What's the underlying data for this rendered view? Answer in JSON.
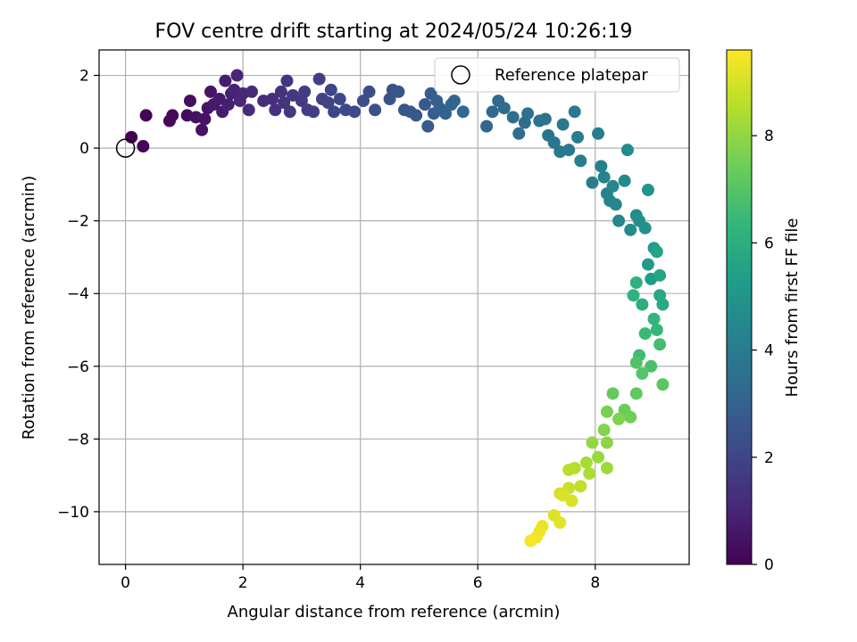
{
  "chart_data": {
    "type": "scatter",
    "title": "FOV centre drift starting at 2024/05/24 10:26:19",
    "xlabel": "Angular distance from reference (arcmin)",
    "ylabel": "Rotation from reference (arcmin)",
    "xlim": [
      -0.45,
      9.6
    ],
    "ylim": [
      -11.45,
      2.7
    ],
    "xticks": [
      0,
      2,
      4,
      6,
      8
    ],
    "yticks": [
      2,
      0,
      -2,
      -4,
      -6,
      -8,
      -10
    ],
    "xtick_labels": [
      "0",
      "2",
      "4",
      "6",
      "8"
    ],
    "ytick_labels": [
      "2",
      "0",
      "−2",
      "−4",
      "−6",
      "−8",
      "−10"
    ],
    "grid": true,
    "legend": {
      "placement": "top-right",
      "entries": [
        "Reference platepar"
      ]
    },
    "reference_point": {
      "x": 0,
      "y": 0,
      "marker": "open-circle"
    },
    "colorbar": {
      "label": "Hours from first FF file",
      "colormap": "viridis",
      "range": [
        0,
        9.6
      ],
      "ticks": [
        0,
        2,
        4,
        6,
        8
      ],
      "tick_labels": [
        "0",
        "2",
        "4",
        "6",
        "8"
      ]
    },
    "colormap_stops": [
      "#440154",
      "#482878",
      "#3e4989",
      "#31688e",
      "#26828e",
      "#1f9e89",
      "#35b779",
      "#6ece58",
      "#b5de2b",
      "#fde725"
    ],
    "points": [
      [
        0.1,
        0.3,
        0.0
      ],
      [
        0.3,
        0.05,
        0.05
      ],
      [
        0.35,
        0.9,
        0.1
      ],
      [
        0.75,
        0.75,
        0.2
      ],
      [
        0.8,
        0.9,
        0.25
      ],
      [
        1.05,
        0.9,
        0.3
      ],
      [
        1.1,
        1.3,
        0.35
      ],
      [
        1.2,
        0.85,
        0.4
      ],
      [
        1.3,
        0.5,
        0.45
      ],
      [
        1.35,
        0.8,
        0.5
      ],
      [
        1.4,
        1.1,
        0.55
      ],
      [
        1.45,
        1.55,
        0.6
      ],
      [
        1.5,
        1.2,
        0.65
      ],
      [
        1.6,
        1.35,
        0.7
      ],
      [
        1.65,
        1.0,
        0.75
      ],
      [
        1.7,
        1.85,
        0.8
      ],
      [
        1.75,
        1.2,
        0.85
      ],
      [
        1.8,
        1.5,
        0.9
      ],
      [
        1.85,
        1.6,
        0.95
      ],
      [
        1.9,
        2.0,
        1.0
      ],
      [
        1.95,
        1.3,
        1.05
      ],
      [
        2.0,
        1.5,
        1.1
      ],
      [
        2.1,
        1.05,
        1.15
      ],
      [
        2.15,
        1.55,
        1.2
      ],
      [
        2.35,
        1.3,
        1.25
      ],
      [
        2.5,
        1.35,
        1.3
      ],
      [
        2.55,
        1.05,
        1.35
      ],
      [
        2.65,
        1.55,
        1.4
      ],
      [
        2.7,
        1.25,
        1.45
      ],
      [
        2.75,
        1.85,
        1.5
      ],
      [
        2.8,
        1.0,
        1.55
      ],
      [
        2.85,
        1.45,
        1.6
      ],
      [
        3.0,
        1.3,
        1.65
      ],
      [
        3.05,
        1.55,
        1.7
      ],
      [
        3.1,
        1.05,
        1.75
      ],
      [
        3.2,
        1.0,
        1.8
      ],
      [
        3.3,
        1.9,
        1.85
      ],
      [
        3.35,
        1.35,
        1.9
      ],
      [
        3.45,
        1.25,
        1.95
      ],
      [
        3.5,
        1.6,
        2.0
      ],
      [
        3.55,
        1.0,
        2.05
      ],
      [
        3.65,
        1.35,
        2.1
      ],
      [
        3.75,
        1.05,
        2.15
      ],
      [
        3.9,
        1.0,
        2.2
      ],
      [
        4.05,
        1.3,
        2.25
      ],
      [
        4.15,
        1.55,
        2.3
      ],
      [
        4.25,
        1.05,
        2.35
      ],
      [
        4.5,
        1.35,
        2.4
      ],
      [
        4.55,
        1.6,
        2.45
      ],
      [
        4.65,
        1.55,
        2.5
      ],
      [
        4.75,
        1.05,
        2.55
      ],
      [
        4.85,
        1.0,
        2.6
      ],
      [
        4.95,
        0.9,
        2.65
      ],
      [
        5.1,
        1.2,
        2.7
      ],
      [
        5.15,
        0.6,
        2.75
      ],
      [
        5.2,
        1.5,
        2.8
      ],
      [
        5.25,
        0.95,
        2.85
      ],
      [
        5.3,
        1.3,
        2.9
      ],
      [
        5.35,
        1.1,
        2.95
      ],
      [
        5.45,
        0.95,
        3.0
      ],
      [
        5.55,
        1.2,
        3.05
      ],
      [
        5.6,
        1.3,
        3.1
      ],
      [
        5.75,
        1.0,
        3.15
      ],
      [
        6.15,
        0.6,
        3.2
      ],
      [
        6.25,
        1.0,
        3.25
      ],
      [
        6.35,
        1.3,
        3.3
      ],
      [
        6.45,
        1.1,
        3.35
      ],
      [
        6.6,
        0.85,
        3.4
      ],
      [
        6.7,
        0.4,
        3.45
      ],
      [
        6.8,
        0.7,
        3.5
      ],
      [
        6.85,
        0.95,
        3.55
      ],
      [
        7.05,
        0.75,
        3.6
      ],
      [
        7.15,
        0.8,
        3.65
      ],
      [
        7.2,
        0.35,
        3.7
      ],
      [
        7.3,
        0.15,
        3.75
      ],
      [
        7.4,
        -0.1,
        3.8
      ],
      [
        7.45,
        0.65,
        3.85
      ],
      [
        7.55,
        -0.05,
        3.9
      ],
      [
        7.65,
        1.0,
        3.95
      ],
      [
        7.7,
        0.3,
        4.0
      ],
      [
        7.75,
        -0.35,
        4.05
      ],
      [
        7.95,
        -0.95,
        4.1
      ],
      [
        8.05,
        0.4,
        4.15
      ],
      [
        8.1,
        -0.5,
        4.2
      ],
      [
        8.15,
        -0.8,
        4.25
      ],
      [
        8.2,
        -1.25,
        4.3
      ],
      [
        8.25,
        -1.45,
        4.35
      ],
      [
        8.3,
        -1.05,
        4.4
      ],
      [
        8.35,
        -1.55,
        4.45
      ],
      [
        8.4,
        -2.0,
        4.5
      ],
      [
        8.5,
        -0.9,
        4.55
      ],
      [
        8.55,
        -0.05,
        4.6
      ],
      [
        8.6,
        -2.25,
        4.65
      ],
      [
        8.7,
        -1.85,
        4.7
      ],
      [
        8.75,
        -2.0,
        4.75
      ],
      [
        8.85,
        -2.2,
        4.8
      ],
      [
        8.9,
        -1.15,
        5.0
      ],
      [
        8.9,
        -3.2,
        5.2
      ],
      [
        8.95,
        -3.6,
        5.3
      ],
      [
        9.0,
        -2.75,
        5.4
      ],
      [
        9.05,
        -2.85,
        5.5
      ],
      [
        9.1,
        -3.5,
        5.6
      ],
      [
        9.1,
        -4.05,
        5.7
      ],
      [
        9.15,
        -4.3,
        5.8
      ],
      [
        8.8,
        -4.3,
        6.0
      ],
      [
        8.7,
        -3.7,
        6.1
      ],
      [
        8.65,
        -4.05,
        6.2
      ],
      [
        9.0,
        -4.7,
        6.3
      ],
      [
        9.05,
        -5.0,
        6.4
      ],
      [
        8.85,
        -5.1,
        6.5
      ],
      [
        8.75,
        -5.7,
        6.6
      ],
      [
        9.1,
        -5.4,
        6.7
      ],
      [
        8.95,
        -6.0,
        6.8
      ],
      [
        8.7,
        -5.9,
        6.9
      ],
      [
        8.8,
        -6.2,
        7.0
      ],
      [
        9.15,
        -6.5,
        7.1
      ],
      [
        8.7,
        -6.75,
        7.2
      ],
      [
        8.3,
        -6.75,
        7.3
      ],
      [
        8.5,
        -7.2,
        7.4
      ],
      [
        8.6,
        -7.4,
        7.5
      ],
      [
        8.2,
        -7.25,
        7.6
      ],
      [
        8.4,
        -7.45,
        7.7
      ],
      [
        8.15,
        -7.75,
        7.8
      ],
      [
        8.2,
        -8.1,
        7.9
      ],
      [
        7.95,
        -8.1,
        8.0
      ],
      [
        8.05,
        -8.5,
        8.1
      ],
      [
        8.2,
        -8.8,
        8.2
      ],
      [
        7.85,
        -8.65,
        8.3
      ],
      [
        7.9,
        -8.95,
        8.4
      ],
      [
        7.65,
        -8.8,
        8.5
      ],
      [
        7.55,
        -8.85,
        8.6
      ],
      [
        7.75,
        -9.3,
        8.7
      ],
      [
        7.55,
        -9.35,
        8.8
      ],
      [
        7.4,
        -9.5,
        8.9
      ],
      [
        7.6,
        -9.7,
        9.0
      ],
      [
        7.45,
        -9.55,
        9.05
      ],
      [
        7.3,
        -10.1,
        9.1
      ],
      [
        7.4,
        -10.3,
        9.2
      ],
      [
        7.1,
        -10.4,
        9.3
      ],
      [
        7.05,
        -10.55,
        9.35
      ],
      [
        7.0,
        -10.7,
        9.4
      ],
      [
        6.9,
        -10.8,
        9.5
      ]
    ]
  }
}
